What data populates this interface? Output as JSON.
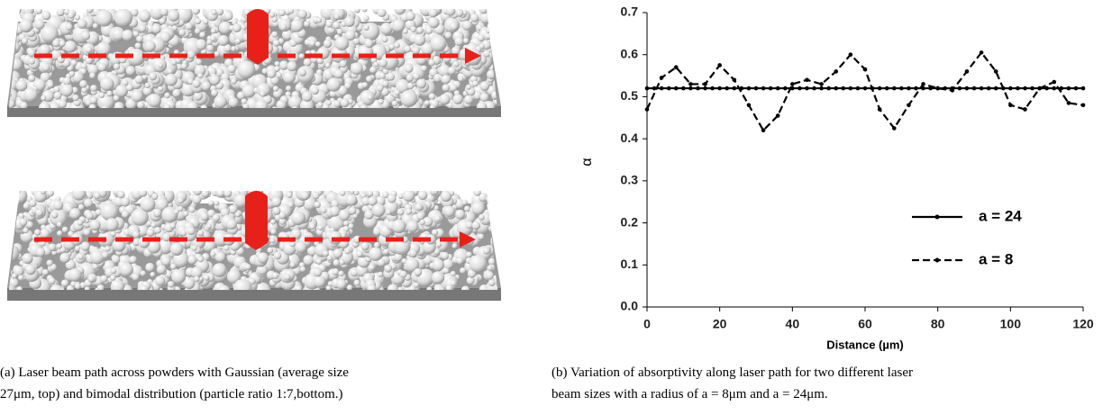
{
  "chart_data": {
    "type": "line",
    "xlabel": "Distance (µm)",
    "ylabel": "α",
    "xlim": [
      0,
      120
    ],
    "xticks": [
      0,
      20,
      40,
      60,
      80,
      100,
      120
    ],
    "ylim": [
      0,
      0.7
    ],
    "yticks": [
      {
        "value": 0,
        "label": "0.0"
      },
      0.1,
      0.2,
      0.3,
      0.4,
      0.5,
      0.6,
      0.7
    ],
    "legend": "lower right",
    "series": [
      {
        "name": "a = 24",
        "color": "#000000",
        "line_style": "solid",
        "x": [
          0,
          2,
          4,
          6,
          8,
          10,
          12,
          14,
          16,
          18,
          20,
          22,
          24,
          26,
          28,
          30,
          32,
          34,
          36,
          38,
          40,
          42,
          44,
          46,
          48,
          50,
          52,
          54,
          56,
          58,
          60,
          62,
          64,
          66,
          68,
          70,
          72,
          74,
          76,
          78,
          80,
          82,
          84,
          86,
          88,
          90,
          92,
          94,
          96,
          98,
          100,
          102,
          104,
          106,
          108,
          110,
          112,
          114,
          116,
          118,
          120
        ],
        "values": [
          0.52,
          0.52,
          0.52,
          0.52,
          0.52,
          0.52,
          0.52,
          0.52,
          0.52,
          0.52,
          0.52,
          0.52,
          0.52,
          0.52,
          0.52,
          0.52,
          0.52,
          0.52,
          0.52,
          0.52,
          0.52,
          0.52,
          0.52,
          0.52,
          0.52,
          0.52,
          0.52,
          0.52,
          0.52,
          0.52,
          0.52,
          0.52,
          0.52,
          0.52,
          0.52,
          0.52,
          0.52,
          0.52,
          0.52,
          0.52,
          0.52,
          0.52,
          0.52,
          0.52,
          0.52,
          0.52,
          0.52,
          0.52,
          0.52,
          0.52,
          0.52,
          0.52,
          0.52,
          0.52,
          0.52,
          0.52,
          0.52,
          0.52,
          0.52,
          0.52,
          0.52
        ]
      },
      {
        "name": "a = 8",
        "color": "#000000",
        "line_style": "dashed",
        "x": [
          0,
          4,
          8,
          12,
          16,
          20,
          24,
          28,
          32,
          36,
          40,
          44,
          48,
          52,
          56,
          60,
          64,
          68,
          72,
          76,
          80,
          84,
          88,
          92,
          96,
          100,
          104,
          108,
          112,
          116,
          120
        ],
        "values": [
          0.47,
          0.545,
          0.57,
          0.53,
          0.53,
          0.575,
          0.54,
          0.48,
          0.42,
          0.455,
          0.53,
          0.54,
          0.53,
          0.56,
          0.6,
          0.565,
          0.47,
          0.425,
          0.48,
          0.53,
          0.52,
          0.515,
          0.56,
          0.605,
          0.56,
          0.48,
          0.47,
          0.52,
          0.535,
          0.485,
          0.48
        ]
      }
    ]
  },
  "captions": {
    "left": [
      "(a) Laser beam path across powders with Gaussian (average size",
      "27μm, top) and bimodal distribution (particle ratio 1:7,bottom.)"
    ],
    "right": [
      "(b) Variation of absorptivity along laser path for two different laser",
      "beam sizes with a radius of a = 8μm and a = 24μm."
    ]
  }
}
